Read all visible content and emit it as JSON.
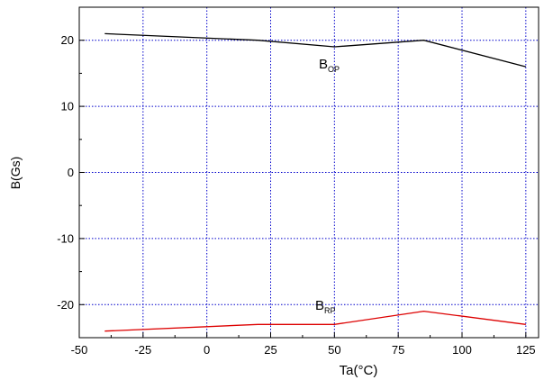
{
  "chart_data": {
    "type": "line",
    "xlabel": "Ta(°C)",
    "ylabel": "B(Gs)",
    "xlim": [
      -50,
      130
    ],
    "ylim": [
      -25,
      25
    ],
    "x_ticks": [
      -50,
      -25,
      0,
      25,
      50,
      75,
      100,
      125
    ],
    "y_ticks": [
      -20,
      -10,
      0,
      10,
      20
    ],
    "grid": true,
    "grid_color": "#0000cc",
    "series": [
      {
        "name": "B_OP",
        "label_main": "B",
        "label_sub": "OP",
        "color": "#000000",
        "x": [
          -40,
          20,
          50,
          85,
          125
        ],
        "y": [
          21,
          20,
          19,
          20,
          16
        ]
      },
      {
        "name": "B_RP",
        "label_main": "B",
        "label_sub": "RP",
        "color": "#dd0000",
        "x": [
          -40,
          20,
          50,
          85,
          125
        ],
        "y": [
          -24,
          -23,
          -23,
          -21,
          -23
        ]
      }
    ]
  }
}
